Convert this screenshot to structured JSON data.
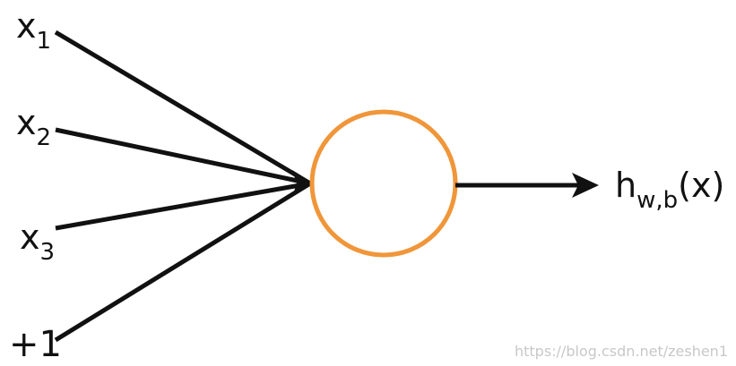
{
  "inputs": [
    {
      "base": "x",
      "sub": "1"
    },
    {
      "base": "x",
      "sub": "2"
    },
    {
      "base": "x",
      "sub": "3"
    },
    {
      "base": "+1",
      "sub": ""
    }
  ],
  "output": {
    "h": "h",
    "sub": "w,b",
    "arg": "(x)"
  },
  "watermark": "https://blog.csdn.net/zeshen1",
  "colors": {
    "node": "#f0963a",
    "arrows": "#111111"
  }
}
